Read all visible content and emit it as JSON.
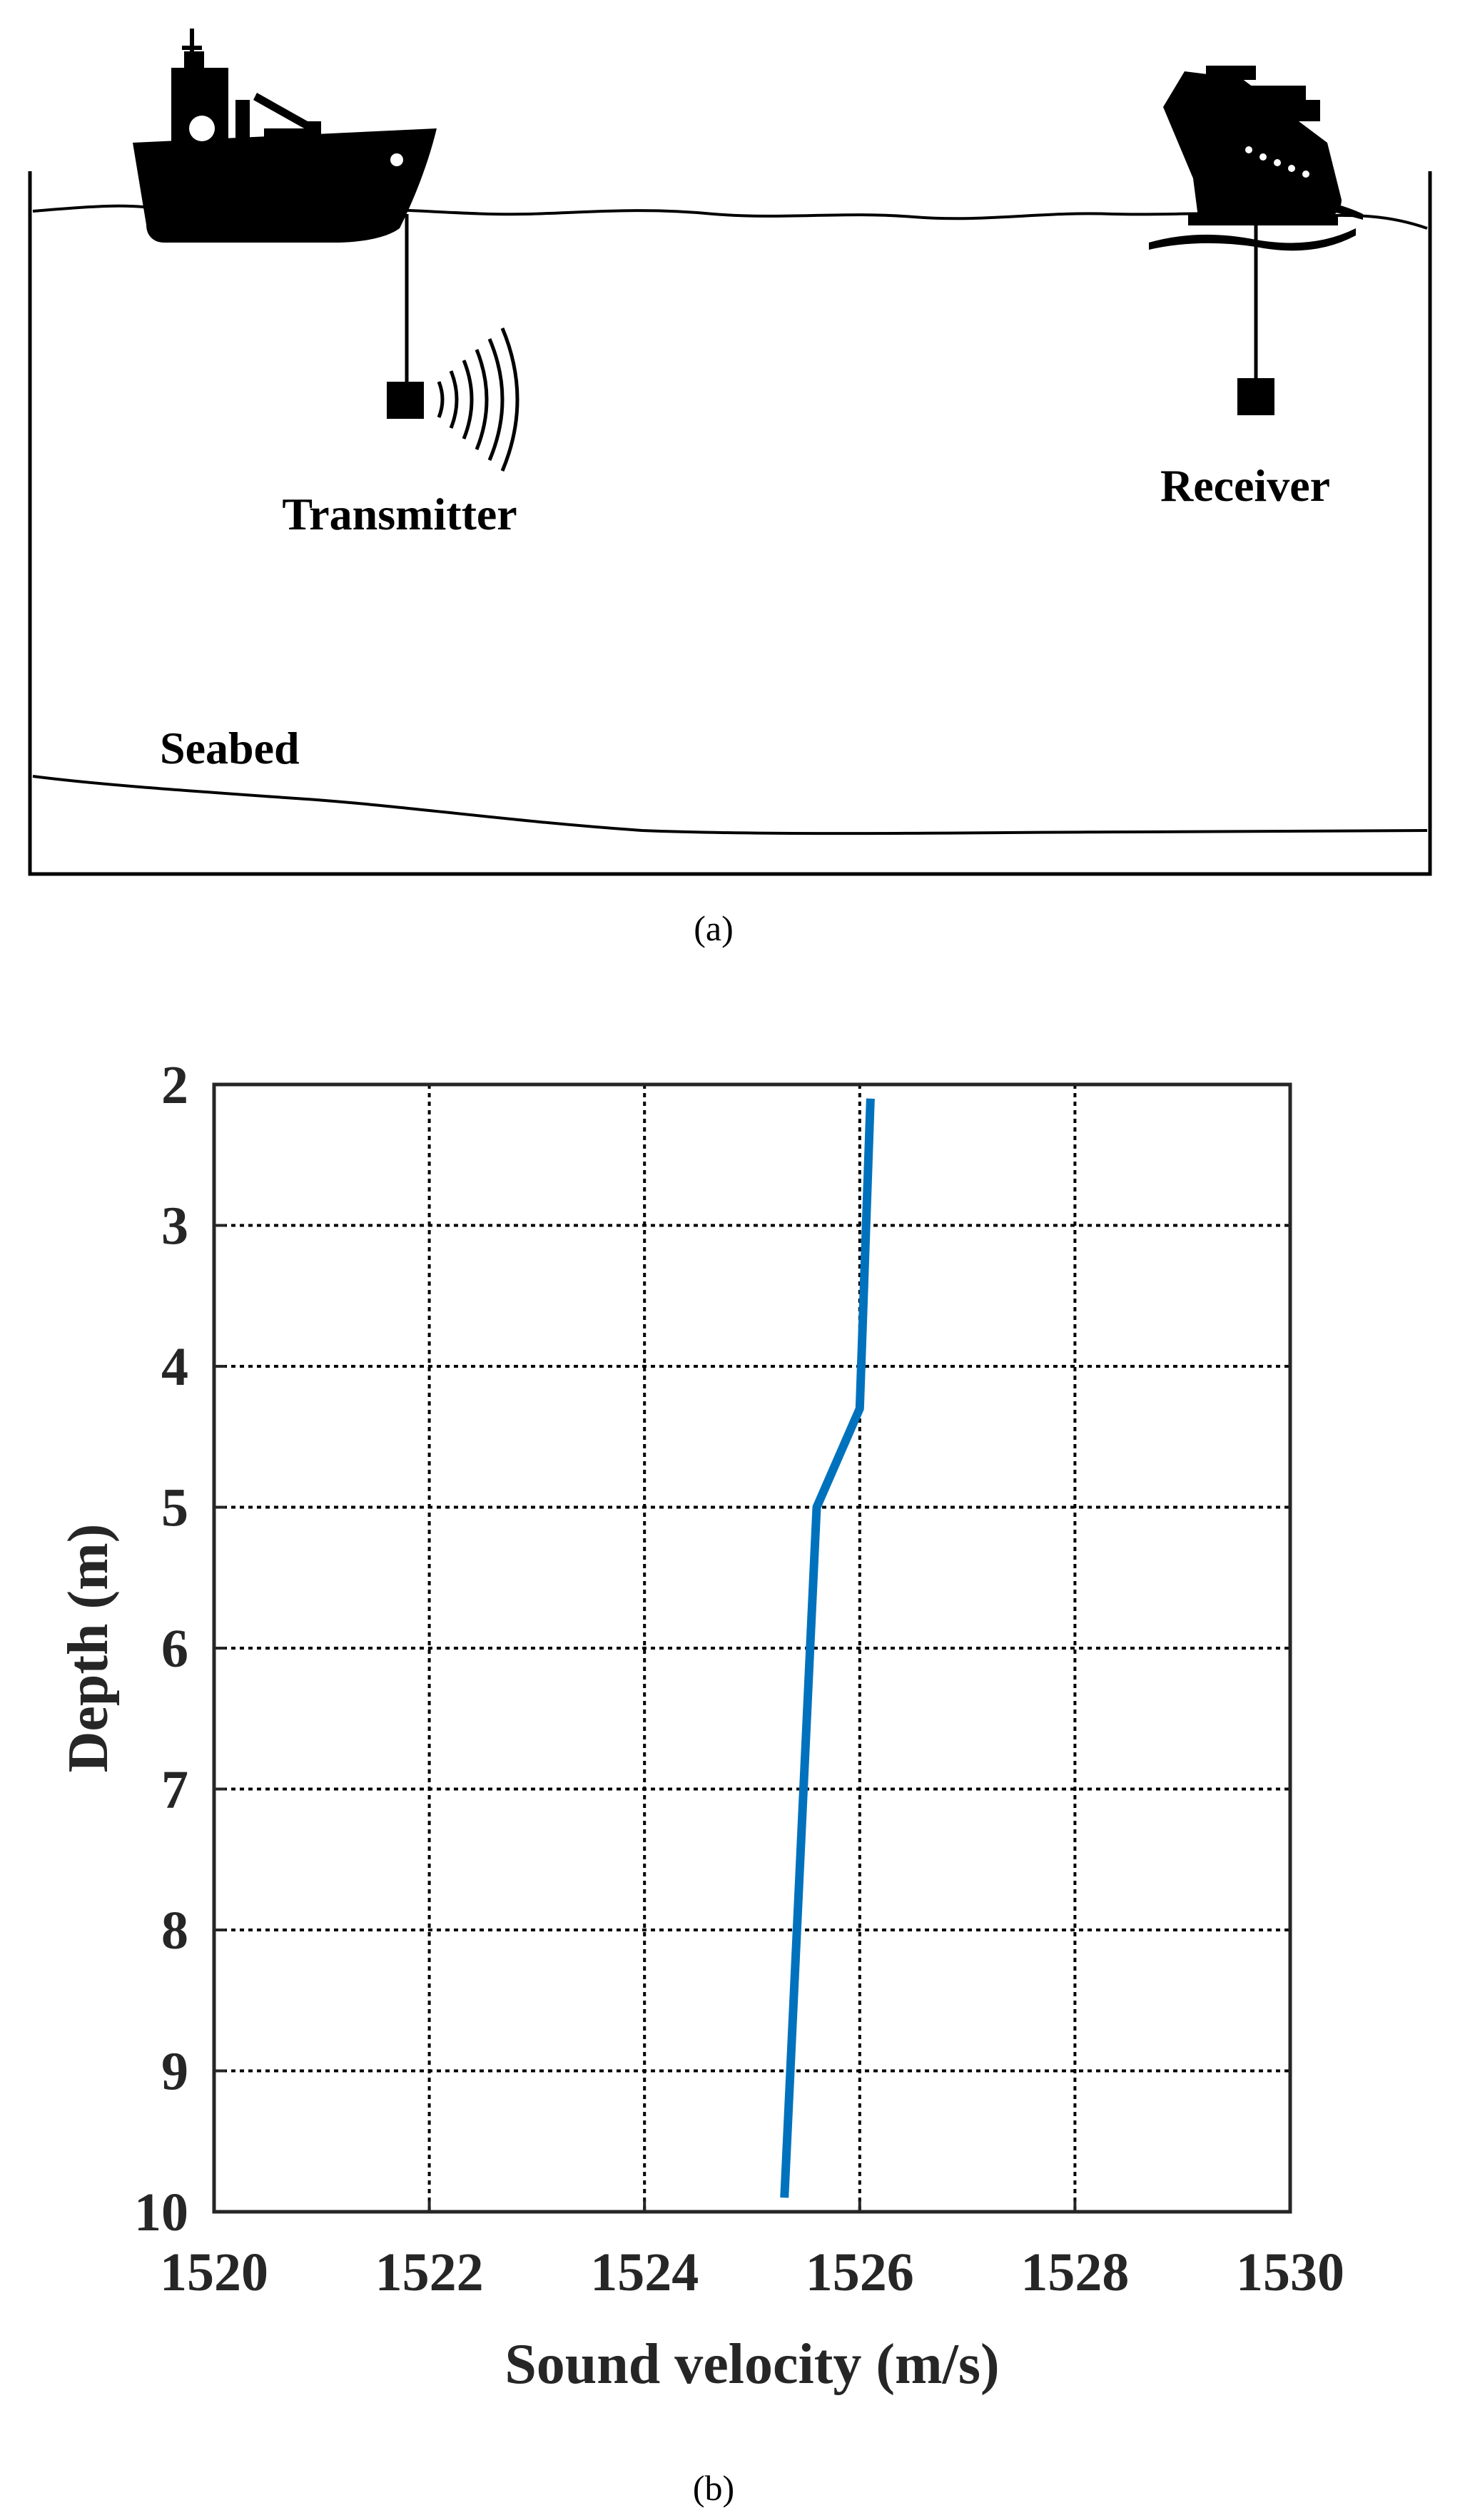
{
  "panel_a": {
    "labels": {
      "transmitter": "Transmitter",
      "receiver": "Receiver",
      "seabed": "Seabed"
    },
    "caption": "(a)",
    "icons": [
      "transmitter-ship-icon",
      "receiver-ship-icon",
      "signal-waves-icon"
    ]
  },
  "panel_b": {
    "caption": "(b)"
  },
  "chart_data": {
    "type": "line",
    "title": "",
    "xlabel": "Sound velocity (m/s)",
    "ylabel": "Depth (m)",
    "xlim": [
      1520,
      1530
    ],
    "ylim": [
      10,
      2
    ],
    "y_inverted": true,
    "xticks": [
      1520,
      1522,
      1524,
      1526,
      1528,
      1530
    ],
    "yticks": [
      2,
      3,
      4,
      5,
      6,
      7,
      8,
      9,
      10
    ],
    "grid": true,
    "series": [
      {
        "color": "#0072BD",
        "x": [
          1526.1,
          1526.0,
          1525.6,
          1525.3
        ],
        "y": [
          2.1,
          4.3,
          5.0,
          9.9
        ]
      }
    ]
  }
}
